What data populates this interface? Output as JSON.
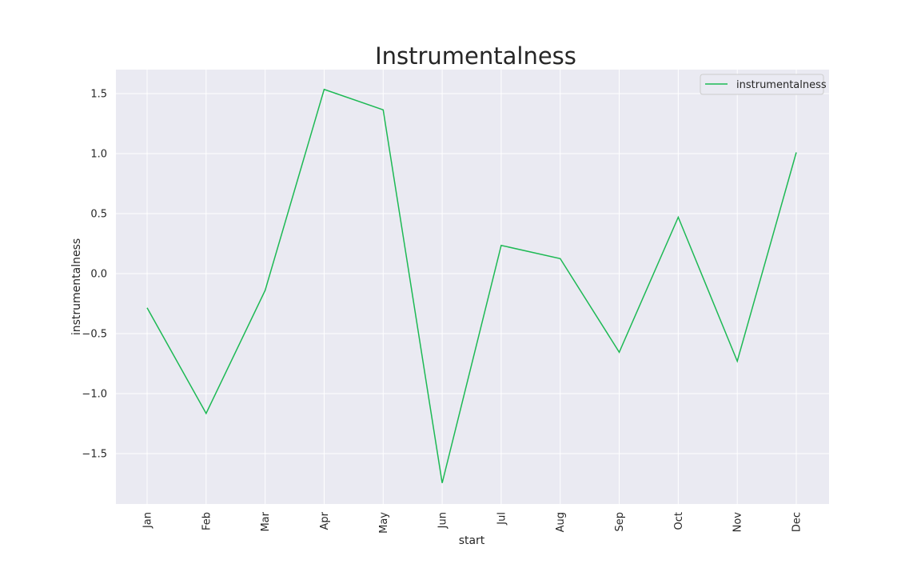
{
  "chart_data": {
    "type": "line",
    "title": "Instrumentalness",
    "xlabel": "start",
    "ylabel": "instrumentalness",
    "categories": [
      "Jan",
      "Feb",
      "Mar",
      "Apr",
      "May",
      "Jun",
      "Jul",
      "Aug",
      "Sep",
      "Oct",
      "Nov",
      "Dec"
    ],
    "series": [
      {
        "name": "instrumentalness",
        "color": "#1db954",
        "values": [
          -0.285,
          -1.165,
          -0.14,
          1.535,
          1.365,
          -1.745,
          0.235,
          0.125,
          -0.655,
          0.47,
          -0.73,
          1.01
        ]
      }
    ],
    "yticks": [
      -1.5,
      -1.0,
      -0.5,
      0.0,
      0.5,
      1.0,
      1.5
    ],
    "ytick_labels": [
      "−1.5",
      "−1.0",
      "−0.5",
      "0.0",
      "0.5",
      "1.0",
      "1.5"
    ],
    "ylim": [
      -1.92,
      1.7
    ],
    "grid": true,
    "legend_position": "top-right",
    "background_color": "#eaeaf2"
  }
}
